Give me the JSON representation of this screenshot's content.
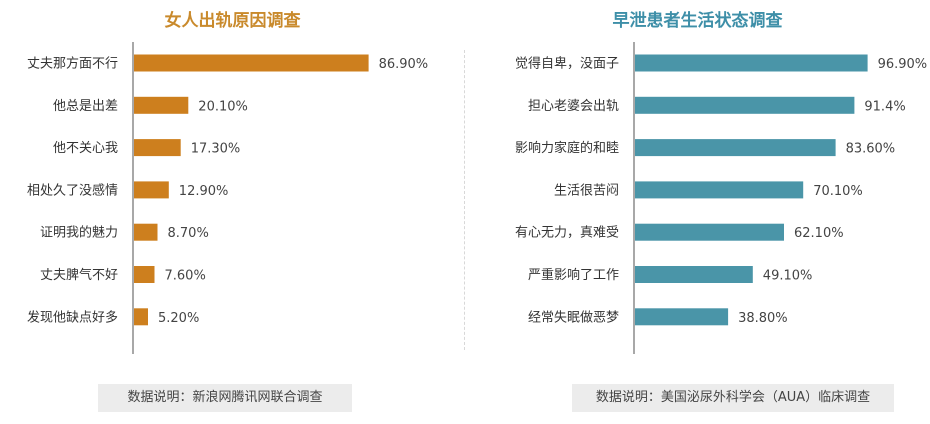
{
  "chart_data": [
    {
      "type": "bar",
      "orientation": "horizontal",
      "title": "女人出轨原因调查",
      "categories": [
        "丈夫那方面不行",
        "他总是出差",
        "他不关心我",
        "相处久了没感情",
        "证明我的魅力",
        "丈夫脾气不好",
        "发现他缺点好多"
      ],
      "values": [
        86.9,
        20.1,
        17.3,
        12.9,
        8.7,
        7.6,
        5.2
      ],
      "value_labels": [
        "86.90%",
        "20.10%",
        "17.30%",
        "12.90%",
        "8.70%",
        "7.60%",
        "5.20%"
      ],
      "xlim": [
        0,
        100
      ],
      "grid": false,
      "bar_color": "#cd7f1e",
      "title_color": "#c98a2c",
      "note": "数据说明：新浪网腾讯网联合调查"
    },
    {
      "type": "bar",
      "orientation": "horizontal",
      "title": "早泄患者生活状态调查",
      "categories": [
        "觉得自卑，没面子",
        "担心老婆会出轨",
        "影响力家庭的和睦",
        "生活很苦闷",
        "有心无力，真难受",
        "严重影响了工作",
        "经常失眠做恶梦"
      ],
      "values": [
        96.9,
        91.4,
        83.6,
        70.1,
        62.1,
        49.1,
        38.8
      ],
      "value_labels": [
        "96.90%",
        "91.4%",
        "83.60%",
        "70.10%",
        "62.10%",
        "49.10%",
        "38.80%"
      ],
      "xlim": [
        0,
        100
      ],
      "grid": false,
      "bar_color": "#4a95a8",
      "title_color": "#3e8fa8",
      "note": "数据说明：美国泌尿外科学会（AUA）临床调查"
    }
  ]
}
